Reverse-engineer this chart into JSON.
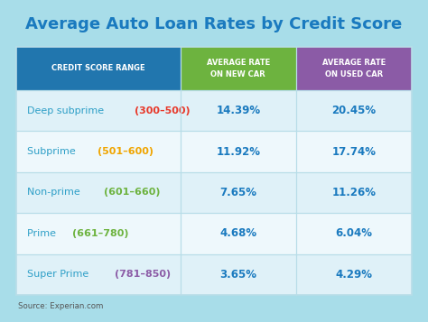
{
  "title": "Average Auto Loan Rates by Credit Score",
  "title_color": "#1a7abf",
  "background_color": "#a8dde9",
  "source_text": "Source: Experian.com",
  "header_col1": "CREDIT SCORE RANGE",
  "header_col2": "AVERAGE RATE\nON NEW CAR",
  "header_col3": "AVERAGE RATE\nON USED CAR",
  "header_col1_bg": "#2176ae",
  "header_col2_bg": "#6db33f",
  "header_col3_bg": "#8b5ba6",
  "header_text_color": "#ffffff",
  "rows": [
    {
      "label": "Deep subprime",
      "range": "300–500",
      "new_rate": "14.39%",
      "used_rate": "20.45%",
      "label_color": "#2e9fc7",
      "range_color": "#e8392a"
    },
    {
      "label": "Subprime",
      "range": "501–600",
      "new_rate": "11.92%",
      "used_rate": "17.74%",
      "label_color": "#2e9fc7",
      "range_color": "#f0a500"
    },
    {
      "label": "Non-prime",
      "range": "601–660",
      "new_rate": "7.65%",
      "used_rate": "11.26%",
      "label_color": "#2e9fc7",
      "range_color": "#6db33f"
    },
    {
      "label": "Prime",
      "range": "661–780",
      "new_rate": "4.68%",
      "used_rate": "6.04%",
      "label_color": "#2e9fc7",
      "range_color": "#6db33f"
    },
    {
      "label": "Super Prime",
      "range": "781–850",
      "new_rate": "3.65%",
      "used_rate": "4.29%",
      "label_color": "#2e9fc7",
      "range_color": "#8b5ba6"
    }
  ],
  "row_bg_even": "#dff1f8",
  "row_bg_odd": "#eef8fc",
  "cell_text_color": "#1a7abf",
  "divider_color": "#b8dde8",
  "table_border_color": "#b8dde8"
}
